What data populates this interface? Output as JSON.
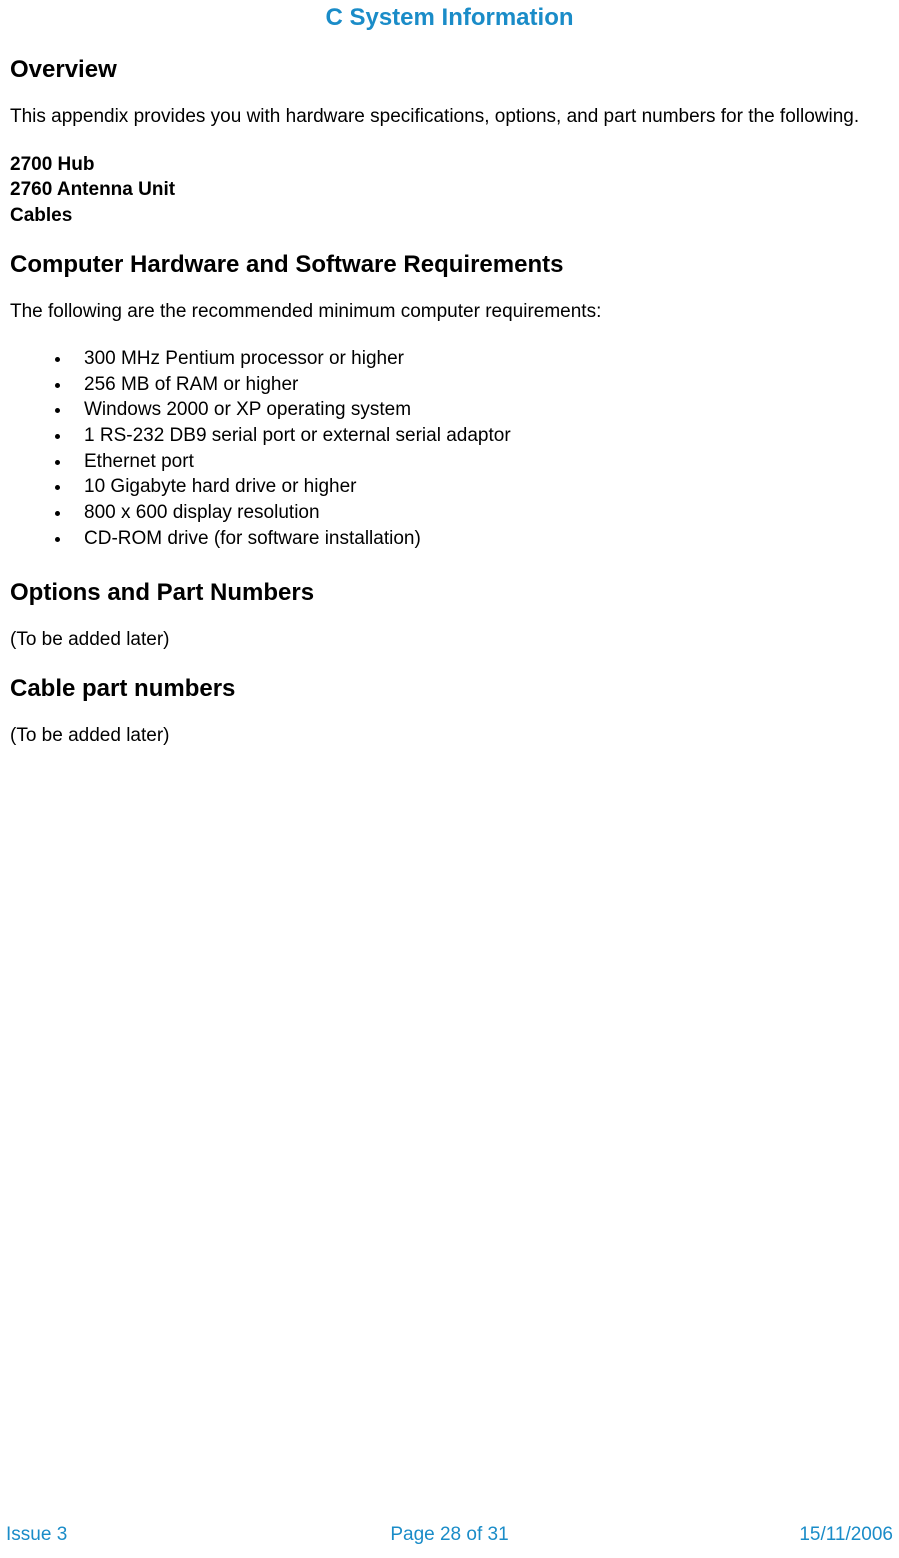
{
  "title": "C System Information",
  "sections": {
    "overview": {
      "heading": "Overview",
      "body": "This appendix provides you with hardware specifications, options, and part numbers for the following.",
      "items": [
        "2700 Hub",
        "2760 Antenna Unit",
        "Cables"
      ]
    },
    "requirements": {
      "heading": "Computer Hardware and Software Requirements",
      "intro": "The following are the recommended minimum computer requirements:",
      "bullets": [
        "300 MHz Pentium processor or higher",
        "256 MB of RAM or higher",
        "Windows 2000 or XP operating system",
        "1 RS-232 DB9 serial port or external serial adaptor",
        "Ethernet port",
        "10 Gigabyte hard drive or higher",
        "800 x 600 display resolution",
        "CD-ROM drive (for software installation)"
      ]
    },
    "options": {
      "heading": "Options and Part Numbers",
      "body": "(To be added later)"
    },
    "cables": {
      "heading": "Cable part numbers",
      "body": "(To be added later)"
    }
  },
  "footer": {
    "issue": "Issue 3",
    "page": "Page 28 of 31",
    "date": "15/11/2006"
  },
  "colors": {
    "accent": "#1a8cc8",
    "text": "#000000",
    "background": "#ffffff"
  },
  "typography": {
    "title_fontsize": 24,
    "heading_fontsize": 24,
    "body_fontsize": 19
  }
}
